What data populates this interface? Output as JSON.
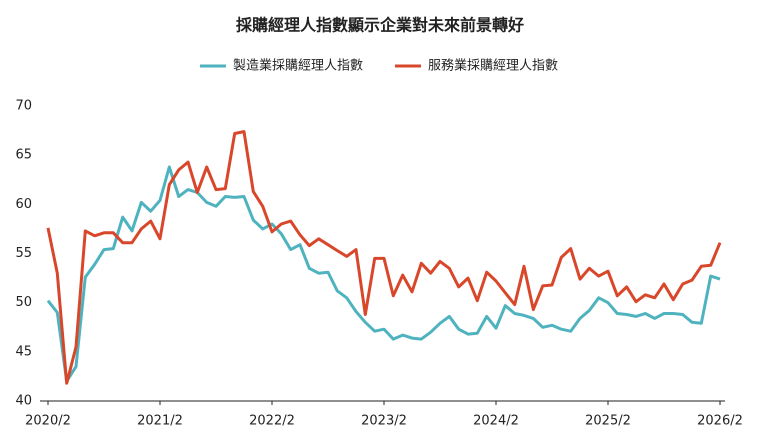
{
  "chart_data": {
    "type": "line",
    "title": "採購經理人指數顯示企業對未來前景轉好",
    "categories": [
      "2020/2",
      null,
      null,
      null,
      null,
      null,
      null,
      null,
      null,
      null,
      null,
      null,
      "2021/2",
      null,
      null,
      null,
      null,
      null,
      null,
      null,
      null,
      null,
      null,
      null,
      "2022/2",
      null,
      null,
      null,
      null,
      null,
      null,
      null,
      null,
      null,
      null,
      null,
      "2023/2",
      null,
      null,
      null,
      null,
      null,
      null,
      null,
      null,
      null,
      null,
      null,
      "2024/2",
      null,
      null,
      null,
      null,
      null,
      null,
      null,
      null,
      null,
      null,
      null,
      "2025/2",
      null,
      null,
      null,
      null,
      null,
      null,
      null,
      null,
      null,
      null,
      null,
      "2026/2"
    ],
    "series": [
      {
        "name": "製造業採購經理人指數",
        "color": "#4fb3bf",
        "values": [
          50.2,
          49.0,
          42.0,
          43.5,
          52.6,
          53.9,
          55.4,
          55.5,
          58.7,
          57.3,
          60.2,
          59.3,
          60.4,
          63.8,
          60.8,
          61.5,
          61.2,
          60.2,
          59.8,
          60.8,
          60.7,
          60.8,
          58.4,
          57.5,
          58.0,
          57.0,
          55.4,
          55.9,
          53.5,
          53.0,
          53.1,
          51.2,
          50.5,
          49.1,
          48.0,
          47.1,
          47.3,
          46.3,
          46.7,
          46.4,
          46.3,
          47.0,
          47.9,
          48.6,
          47.3,
          46.8,
          46.9,
          48.6,
          47.4,
          49.7,
          48.9,
          48.7,
          48.4,
          47.5,
          47.7,
          47.3,
          47.1,
          48.4,
          49.2,
          50.5,
          50.0,
          48.9,
          48.8,
          48.6,
          48.9,
          48.4,
          48.9,
          48.9,
          48.8,
          48.0,
          47.9,
          52.7,
          52.4
        ]
      },
      {
        "name": "服務業採購經理人指數",
        "color": "#d9472b",
        "values": [
          57.6,
          53.0,
          41.8,
          45.5,
          57.3,
          56.8,
          57.1,
          57.1,
          56.1,
          56.1,
          57.5,
          58.3,
          56.5,
          62.0,
          63.5,
          64.3,
          61.2,
          63.8,
          61.5,
          61.6,
          67.2,
          67.4,
          61.3,
          59.8,
          57.2,
          58.0,
          58.3,
          56.9,
          55.8,
          56.5,
          55.9,
          55.3,
          54.7,
          55.4,
          48.8,
          54.5,
          54.5,
          50.7,
          52.8,
          51.1,
          54.0,
          53.0,
          54.2,
          53.5,
          51.6,
          52.5,
          50.2,
          53.1,
          52.2,
          51.0,
          49.8,
          53.7,
          49.3,
          51.7,
          51.8,
          54.6,
          55.5,
          52.4,
          53.5,
          52.7,
          53.2,
          50.7,
          51.6,
          50.1,
          50.8,
          50.5,
          51.9,
          50.3,
          51.9,
          52.3,
          53.7,
          53.8,
          56.1
        ]
      }
    ],
    "ylim": [
      40,
      70
    ],
    "yticks": [
      40,
      45,
      50,
      55,
      60,
      65,
      70
    ],
    "grid": false
  }
}
